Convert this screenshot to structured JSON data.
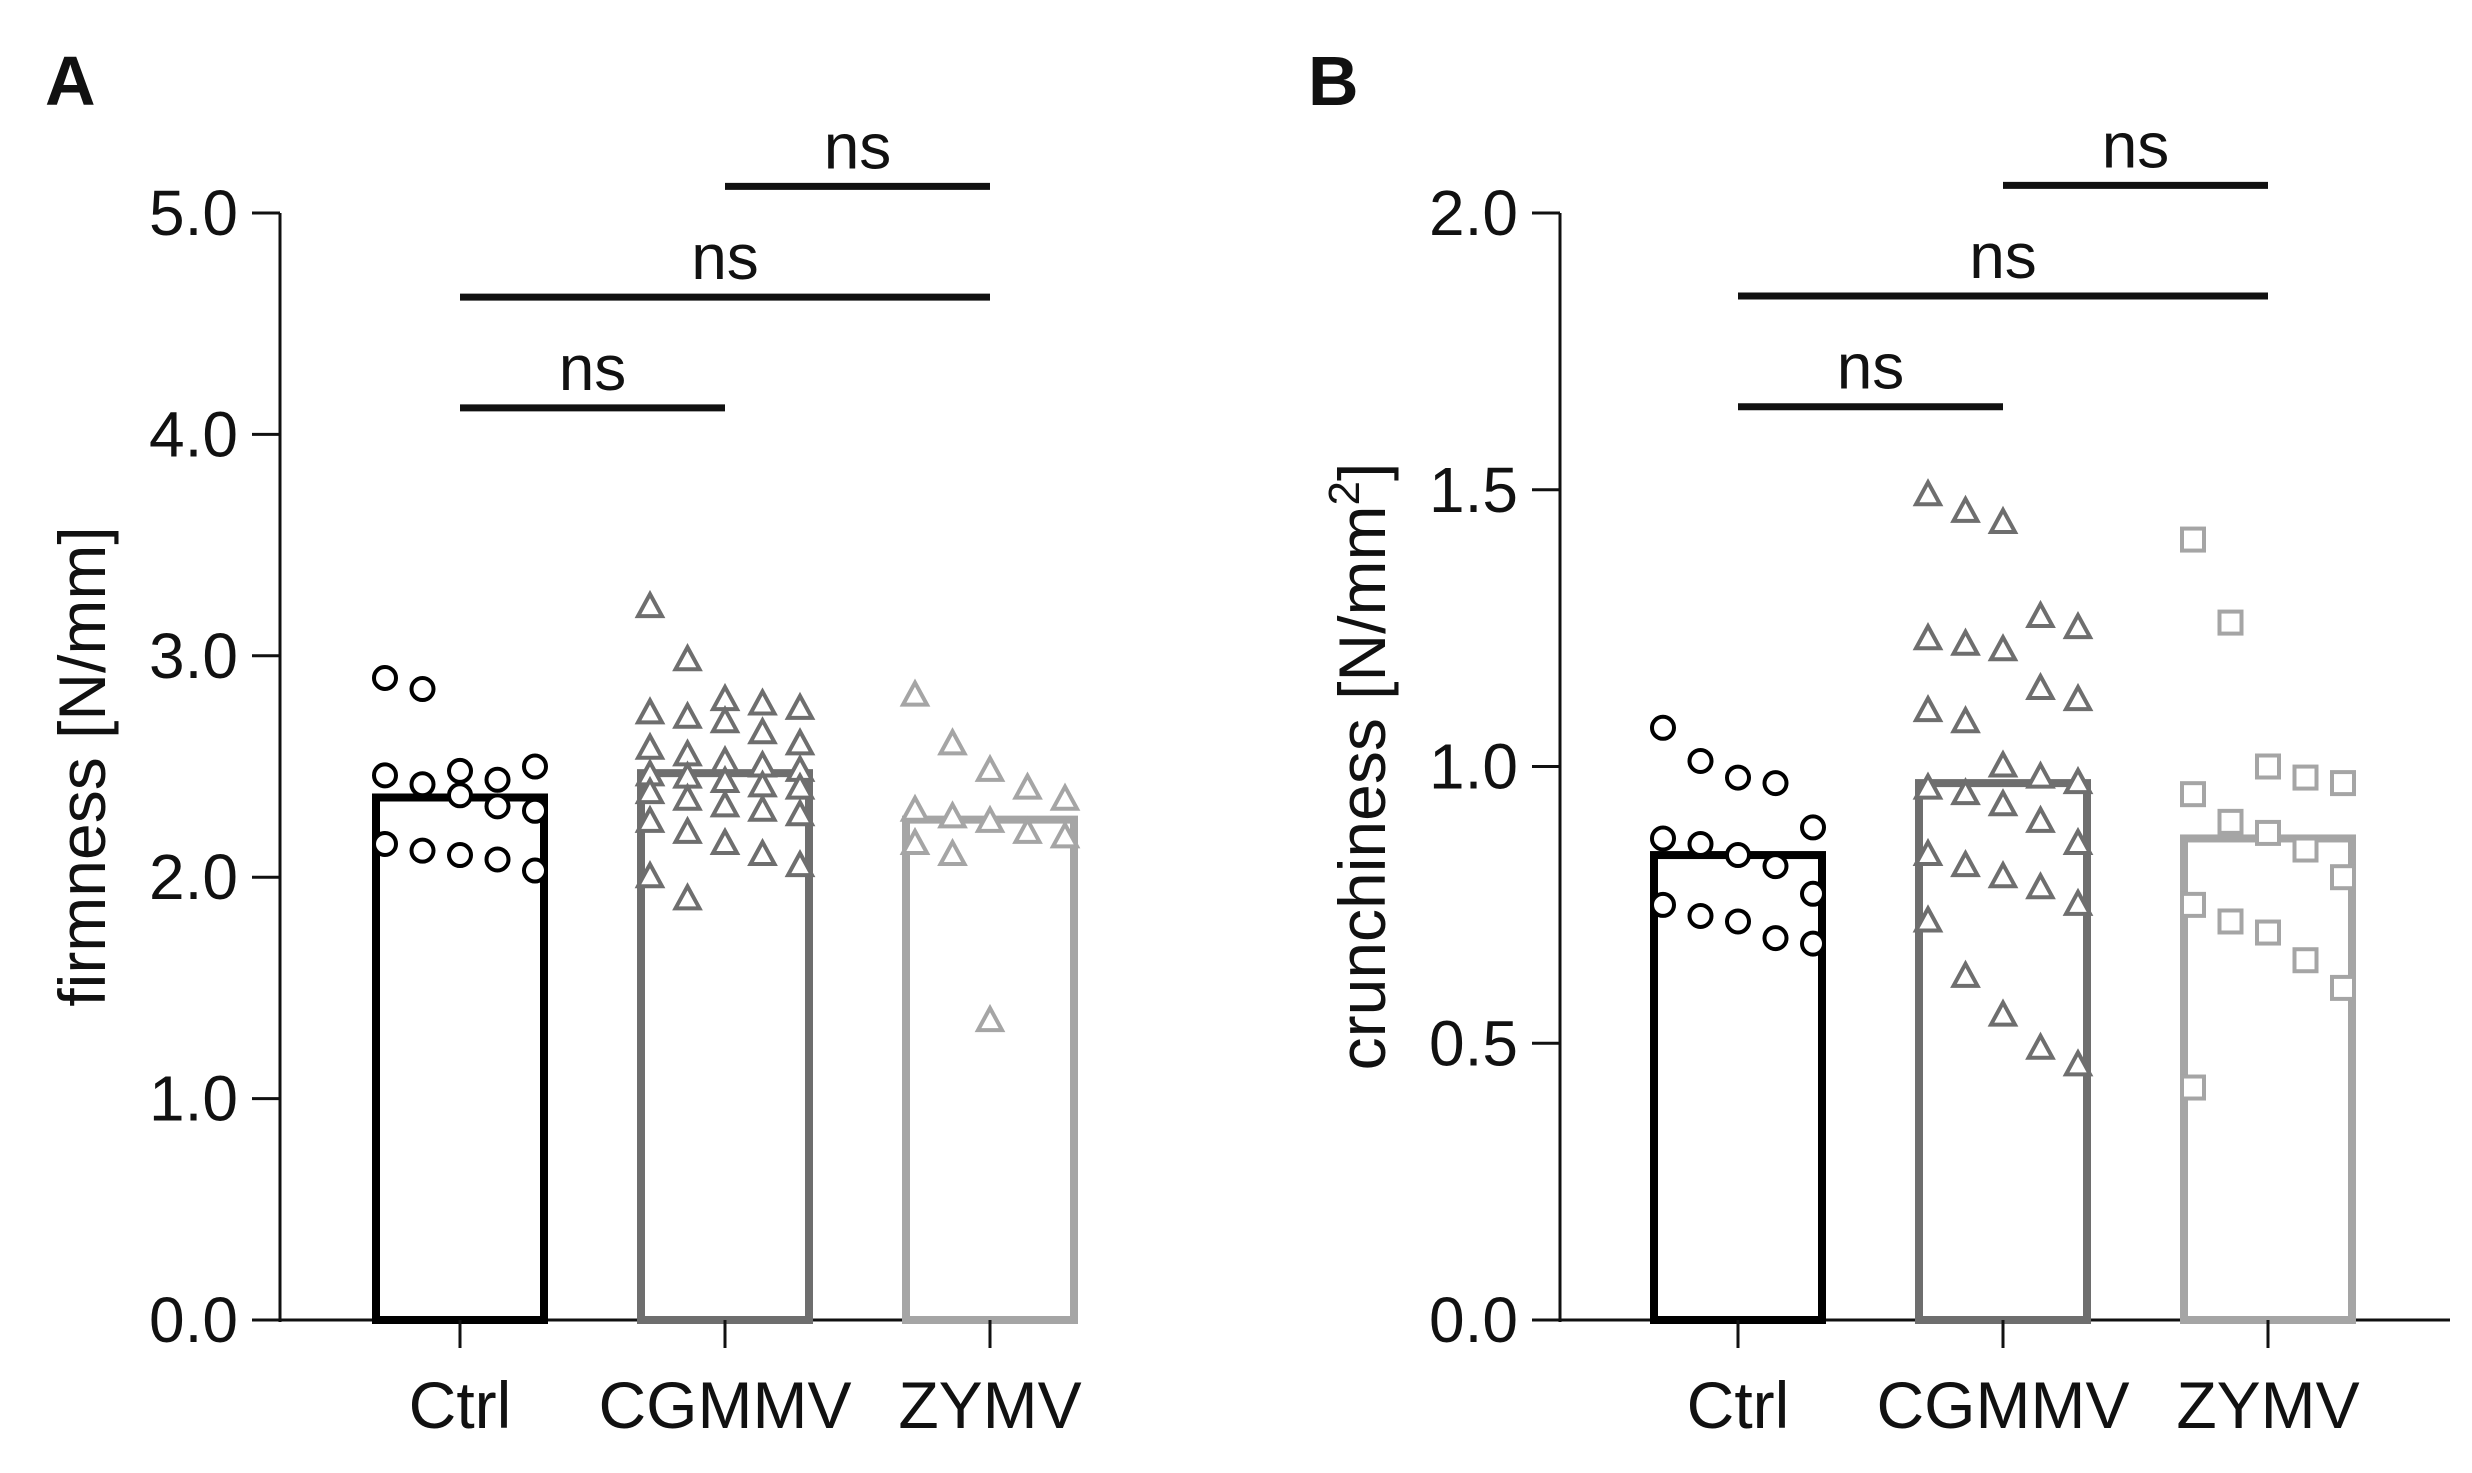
{
  "chart_data": [
    {
      "type": "bar",
      "panel_label": "A",
      "title": "",
      "xlabel": "",
      "ylabel": "firmness [N/mm]",
      "ylabel_unit_sup": "",
      "ylim": [
        0,
        5
      ],
      "yticks": [
        0,
        1,
        2,
        3,
        4,
        5
      ],
      "ytick_labels": [
        "0.0",
        "1.0",
        "2.0",
        "3.0",
        "4.0",
        "5.0"
      ],
      "categories": [
        "Ctrl",
        "CGMMV",
        "ZYMV"
      ],
      "bar_values": [
        2.36,
        2.47,
        2.26
      ],
      "colors": [
        "#000000",
        "#6e6e6e",
        "#a5a5a5"
      ],
      "markers": [
        "circle",
        "triangle",
        "triangle"
      ],
      "points": [
        [
          2.9,
          2.85,
          2.48,
          2.44,
          2.5,
          2.46,
          2.42,
          2.37,
          2.32,
          2.3,
          2.15,
          2.12,
          2.1,
          2.08,
          2.03
        ],
        [
          3.22,
          2.98,
          2.8,
          2.78,
          2.76,
          2.74,
          2.72,
          2.7,
          2.65,
          2.6,
          2.58,
          2.55,
          2.52,
          2.5,
          2.48,
          2.46,
          2.45,
          2.43,
          2.41,
          2.4,
          2.38,
          2.35,
          2.32,
          2.3,
          2.28,
          2.25,
          2.2,
          2.15,
          2.1,
          2.05,
          2.0,
          1.9
        ],
        [
          2.82,
          2.6,
          2.48,
          2.4,
          2.35,
          2.3,
          2.27,
          2.25,
          2.2,
          2.18,
          2.15,
          2.1,
          1.35
        ]
      ],
      "significance": [
        {
          "from": 0,
          "to": 1,
          "level": 4.12,
          "label": "ns"
        },
        {
          "from": 0,
          "to": 2,
          "level": 4.62,
          "label": "ns"
        },
        {
          "from": 1,
          "to": 2,
          "level": 5.12,
          "label": "ns"
        }
      ]
    },
    {
      "type": "bar",
      "panel_label": "B",
      "title": "",
      "xlabel": "",
      "ylabel": "crunchiness [N/mm",
      "ylabel_unit_sup": "2",
      "ylabel_tail": "]",
      "ylim": [
        0,
        2
      ],
      "yticks": [
        0,
        0.5,
        1,
        1.5,
        2
      ],
      "ytick_labels": [
        "0.0",
        "0.5",
        "1.0",
        "1.5",
        "2.0"
      ],
      "categories": [
        "Ctrl",
        "CGMMV",
        "ZYMV"
      ],
      "bar_values": [
        0.84,
        0.97,
        0.87
      ],
      "colors": [
        "#000000",
        "#6e6e6e",
        "#a5a5a5"
      ],
      "markers": [
        "circle",
        "triangle",
        "square"
      ],
      "points": [
        [
          1.07,
          1.01,
          0.98,
          0.97,
          0.89,
          0.87,
          0.86,
          0.84,
          0.82,
          0.77,
          0.75,
          0.73,
          0.72,
          0.69,
          0.68
        ],
        [
          1.49,
          1.46,
          1.44,
          1.27,
          1.25,
          1.23,
          1.22,
          1.21,
          1.14,
          1.12,
          1.1,
          1.08,
          1.0,
          0.98,
          0.97,
          0.96,
          0.95,
          0.93,
          0.9,
          0.86,
          0.84,
          0.82,
          0.8,
          0.78,
          0.75,
          0.72,
          0.62,
          0.55,
          0.49,
          0.46
        ],
        [
          1.41,
          1.26,
          1.0,
          0.98,
          0.97,
          0.95,
          0.9,
          0.88,
          0.85,
          0.8,
          0.75,
          0.72,
          0.7,
          0.65,
          0.6,
          0.42
        ]
      ],
      "significance": [
        {
          "from": 0,
          "to": 1,
          "level": 1.65,
          "label": "ns"
        },
        {
          "from": 0,
          "to": 2,
          "level": 1.85,
          "label": "ns"
        },
        {
          "from": 1,
          "to": 2,
          "level": 2.05,
          "label": "ns"
        }
      ]
    }
  ]
}
